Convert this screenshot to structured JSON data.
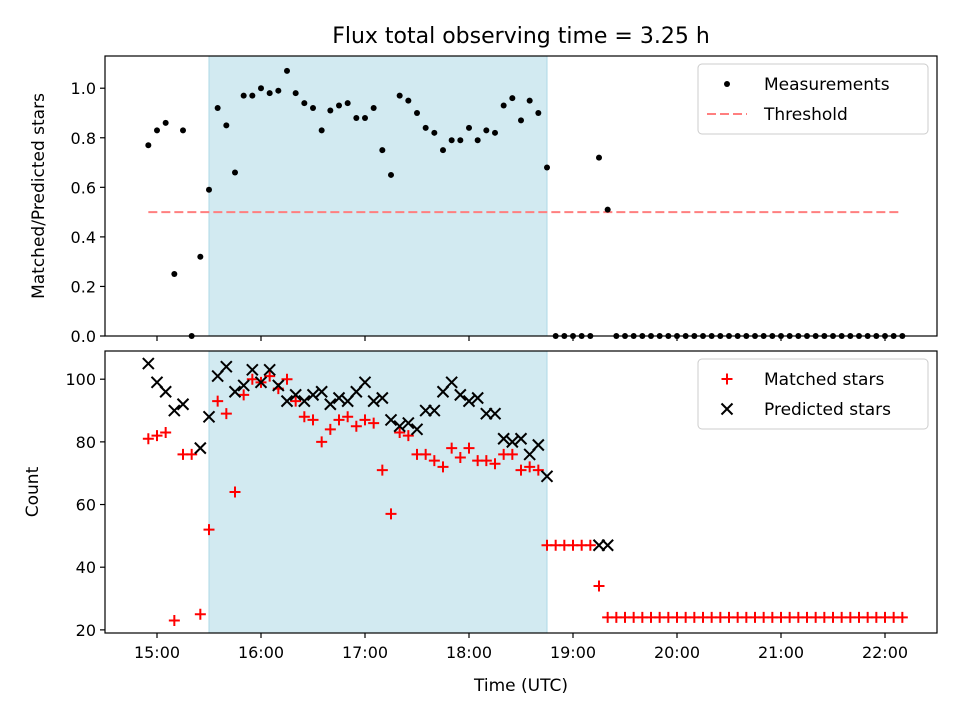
{
  "chart_data": [
    {
      "type": "scatter",
      "title": "Flux total observing time = 3.25 h",
      "xlabel": "",
      "ylabel": "Matched/Predicted stars",
      "xlim": [
        "14:30",
        "22:30"
      ],
      "ylim": [
        0,
        1.13
      ],
      "yticks": [
        0.0,
        0.2,
        0.4,
        0.6,
        0.8,
        1.0
      ],
      "ytick_labels": [
        "0.0",
        "0.2",
        "0.4",
        "0.6",
        "0.8",
        "1.0"
      ],
      "grid": false,
      "legend": {
        "placement": "top-right",
        "entries": [
          "Measurements",
          "Threshold"
        ]
      },
      "shaded_interval": {
        "x": [
          "15:30",
          "18:45"
        ],
        "color": "#add8e6"
      },
      "threshold": {
        "name": "Threshold",
        "value": 0.5,
        "x": [
          "14:55",
          "22:10"
        ],
        "color": "#ff7f7f",
        "style": "dashed"
      },
      "series": [
        {
          "name": "Measurements",
          "marker": "dot",
          "color": "#000000",
          "points": [
            [
              "14:55",
              0.77
            ],
            [
              "15:00",
              0.83
            ],
            [
              "15:05",
              0.86
            ],
            [
              "15:10",
              0.25
            ],
            [
              "15:15",
              0.83
            ],
            [
              "15:20",
              0.0
            ],
            [
              "15:25",
              0.32
            ],
            [
              "15:30",
              0.59
            ],
            [
              "15:35",
              0.92
            ],
            [
              "15:40",
              0.85
            ],
            [
              "15:45",
              0.66
            ],
            [
              "15:50",
              0.97
            ],
            [
              "15:55",
              0.97
            ],
            [
              "16:00",
              1.0
            ],
            [
              "16:05",
              0.98
            ],
            [
              "16:10",
              0.99
            ],
            [
              "16:15",
              1.07
            ],
            [
              "16:20",
              0.98
            ],
            [
              "16:25",
              0.94
            ],
            [
              "16:30",
              0.92
            ],
            [
              "16:35",
              0.83
            ],
            [
              "16:40",
              0.91
            ],
            [
              "16:45",
              0.93
            ],
            [
              "16:50",
              0.94
            ],
            [
              "16:55",
              0.88
            ],
            [
              "17:00",
              0.88
            ],
            [
              "17:05",
              0.92
            ],
            [
              "17:10",
              0.75
            ],
            [
              "17:15",
              0.65
            ],
            [
              "17:20",
              0.97
            ],
            [
              "17:25",
              0.95
            ],
            [
              "17:30",
              0.9
            ],
            [
              "17:35",
              0.84
            ],
            [
              "17:40",
              0.82
            ],
            [
              "17:45",
              0.75
            ],
            [
              "17:50",
              0.79
            ],
            [
              "17:55",
              0.79
            ],
            [
              "18:00",
              0.84
            ],
            [
              "18:05",
              0.79
            ],
            [
              "18:10",
              0.83
            ],
            [
              "18:15",
              0.82
            ],
            [
              "18:20",
              0.93
            ],
            [
              "18:25",
              0.96
            ],
            [
              "18:30",
              0.87
            ],
            [
              "18:35",
              0.95
            ],
            [
              "18:40",
              0.9
            ],
            [
              "18:45",
              0.68
            ],
            [
              "18:50",
              0.0
            ],
            [
              "18:55",
              0.0
            ],
            [
              "19:00",
              0.0
            ],
            [
              "19:05",
              0.0
            ],
            [
              "19:10",
              0.0
            ],
            [
              "19:15",
              0.72
            ],
            [
              "19:20",
              0.51
            ],
            [
              "19:25",
              0.0
            ],
            [
              "19:30",
              0.0
            ],
            [
              "19:35",
              0.0
            ],
            [
              "19:40",
              0.0
            ],
            [
              "19:45",
              0.0
            ],
            [
              "19:50",
              0.0
            ],
            [
              "19:55",
              0.0
            ],
            [
              "20:00",
              0.0
            ],
            [
              "20:05",
              0.0
            ],
            [
              "20:10",
              0.0
            ],
            [
              "20:15",
              0.0
            ],
            [
              "20:20",
              0.0
            ],
            [
              "20:25",
              0.0
            ],
            [
              "20:30",
              0.0
            ],
            [
              "20:35",
              0.0
            ],
            [
              "20:40",
              0.0
            ],
            [
              "20:45",
              0.0
            ],
            [
              "20:50",
              0.0
            ],
            [
              "20:55",
              0.0
            ],
            [
              "21:00",
              0.0
            ],
            [
              "21:05",
              0.0
            ],
            [
              "21:10",
              0.0
            ],
            [
              "21:15",
              0.0
            ],
            [
              "21:20",
              0.0
            ],
            [
              "21:25",
              0.0
            ],
            [
              "21:30",
              0.0
            ],
            [
              "21:35",
              0.0
            ],
            [
              "21:40",
              0.0
            ],
            [
              "21:45",
              0.0
            ],
            [
              "21:50",
              0.0
            ],
            [
              "21:55",
              0.0
            ],
            [
              "22:00",
              0.0
            ],
            [
              "22:05",
              0.0
            ],
            [
              "22:10",
              0.0
            ]
          ]
        }
      ]
    },
    {
      "type": "scatter",
      "title": "",
      "xlabel": "Time (UTC)",
      "ylabel": "Count",
      "xlim": [
        "14:30",
        "22:30"
      ],
      "ylim": [
        19,
        109
      ],
      "xticks": [
        "15:00",
        "16:00",
        "17:00",
        "18:00",
        "19:00",
        "20:00",
        "21:00",
        "22:00"
      ],
      "xtick_labels": [
        "15:00",
        "16:00",
        "17:00",
        "18:00",
        "19:00",
        "20:00",
        "21:00",
        "22:00"
      ],
      "yticks": [
        20,
        40,
        60,
        80,
        100
      ],
      "ytick_labels": [
        "20",
        "40",
        "60",
        "80",
        "100"
      ],
      "grid": false,
      "legend": {
        "placement": "top-right",
        "entries": [
          "Matched stars",
          "Predicted stars"
        ]
      },
      "shaded_interval": {
        "x": [
          "15:30",
          "18:45"
        ],
        "color": "#add8e6"
      },
      "series": [
        {
          "name": "Matched stars",
          "marker": "plus",
          "color": "#ff0000",
          "points": [
            [
              "14:55",
              81
            ],
            [
              "15:00",
              82
            ],
            [
              "15:05",
              83
            ],
            [
              "15:10",
              23
            ],
            [
              "15:15",
              76
            ],
            [
              "15:20",
              76
            ],
            [
              "15:25",
              25
            ],
            [
              "15:30",
              52
            ],
            [
              "15:35",
              93
            ],
            [
              "15:40",
              89
            ],
            [
              "15:45",
              64
            ],
            [
              "15:50",
              95
            ],
            [
              "15:55",
              100
            ],
            [
              "16:00",
              99
            ],
            [
              "16:05",
              101
            ],
            [
              "16:10",
              97
            ],
            [
              "16:15",
              100
            ],
            [
              "16:20",
              93
            ],
            [
              "16:25",
              88
            ],
            [
              "16:30",
              87
            ],
            [
              "16:35",
              80
            ],
            [
              "16:40",
              84
            ],
            [
              "16:45",
              87
            ],
            [
              "16:50",
              88
            ],
            [
              "16:55",
              85
            ],
            [
              "17:00",
              87
            ],
            [
              "17:05",
              86
            ],
            [
              "17:10",
              71
            ],
            [
              "17:15",
              57
            ],
            [
              "17:20",
              83
            ],
            [
              "17:25",
              82
            ],
            [
              "17:30",
              76
            ],
            [
              "17:35",
              76
            ],
            [
              "17:40",
              74
            ],
            [
              "17:45",
              72
            ],
            [
              "17:50",
              78
            ],
            [
              "17:55",
              75
            ],
            [
              "18:00",
              78
            ],
            [
              "18:05",
              74
            ],
            [
              "18:10",
              74
            ],
            [
              "18:15",
              73
            ],
            [
              "18:20",
              76
            ],
            [
              "18:25",
              76
            ],
            [
              "18:30",
              71
            ],
            [
              "18:35",
              72
            ],
            [
              "18:40",
              71
            ],
            [
              "18:45",
              47
            ],
            [
              "18:50",
              47
            ],
            [
              "18:55",
              47
            ],
            [
              "19:00",
              47
            ],
            [
              "19:05",
              47
            ],
            [
              "19:10",
              47
            ],
            [
              "19:15",
              34
            ],
            [
              "19:20",
              24
            ],
            [
              "19:25",
              24
            ],
            [
              "19:30",
              24
            ],
            [
              "19:35",
              24
            ],
            [
              "19:40",
              24
            ],
            [
              "19:45",
              24
            ],
            [
              "19:50",
              24
            ],
            [
              "19:55",
              24
            ],
            [
              "20:00",
              24
            ],
            [
              "20:05",
              24
            ],
            [
              "20:10",
              24
            ],
            [
              "20:15",
              24
            ],
            [
              "20:20",
              24
            ],
            [
              "20:25",
              24
            ],
            [
              "20:30",
              24
            ],
            [
              "20:35",
              24
            ],
            [
              "20:40",
              24
            ],
            [
              "20:45",
              24
            ],
            [
              "20:50",
              24
            ],
            [
              "20:55",
              24
            ],
            [
              "21:00",
              24
            ],
            [
              "21:05",
              24
            ],
            [
              "21:10",
              24
            ],
            [
              "21:15",
              24
            ],
            [
              "21:20",
              24
            ],
            [
              "21:25",
              24
            ],
            [
              "21:30",
              24
            ],
            [
              "21:35",
              24
            ],
            [
              "21:40",
              24
            ],
            [
              "21:45",
              24
            ],
            [
              "21:50",
              24
            ],
            [
              "21:55",
              24
            ],
            [
              "22:00",
              24
            ],
            [
              "22:05",
              24
            ],
            [
              "22:10",
              24
            ]
          ]
        },
        {
          "name": "Predicted stars",
          "marker": "x",
          "color": "#000000",
          "points": [
            [
              "14:55",
              105
            ],
            [
              "15:00",
              99
            ],
            [
              "15:05",
              96
            ],
            [
              "15:10",
              90
            ],
            [
              "15:15",
              92
            ],
            [
              "15:25",
              78
            ],
            [
              "15:30",
              88
            ],
            [
              "15:35",
              101
            ],
            [
              "15:40",
              104
            ],
            [
              "15:45",
              96
            ],
            [
              "15:50",
              98
            ],
            [
              "15:55",
              103
            ],
            [
              "16:00",
              99
            ],
            [
              "16:05",
              103
            ],
            [
              "16:10",
              98
            ],
            [
              "16:15",
              93
            ],
            [
              "16:20",
              95
            ],
            [
              "16:25",
              93
            ],
            [
              "16:30",
              95
            ],
            [
              "16:35",
              96
            ],
            [
              "16:40",
              92
            ],
            [
              "16:45",
              94
            ],
            [
              "16:50",
              93
            ],
            [
              "16:55",
              96
            ],
            [
              "17:00",
              99
            ],
            [
              "17:05",
              93
            ],
            [
              "17:10",
              94
            ],
            [
              "17:15",
              87
            ],
            [
              "17:20",
              85
            ],
            [
              "17:25",
              86
            ],
            [
              "17:30",
              84
            ],
            [
              "17:35",
              90
            ],
            [
              "17:40",
              90
            ],
            [
              "17:45",
              96
            ],
            [
              "17:50",
              99
            ],
            [
              "17:55",
              95
            ],
            [
              "18:00",
              93
            ],
            [
              "18:05",
              94
            ],
            [
              "18:10",
              89
            ],
            [
              "18:15",
              89
            ],
            [
              "18:20",
              81
            ],
            [
              "18:25",
              80
            ],
            [
              "18:30",
              81
            ],
            [
              "18:35",
              76
            ],
            [
              "18:40",
              79
            ],
            [
              "18:45",
              69
            ],
            [
              "19:15",
              47
            ],
            [
              "19:20",
              47
            ]
          ]
        }
      ]
    }
  ]
}
